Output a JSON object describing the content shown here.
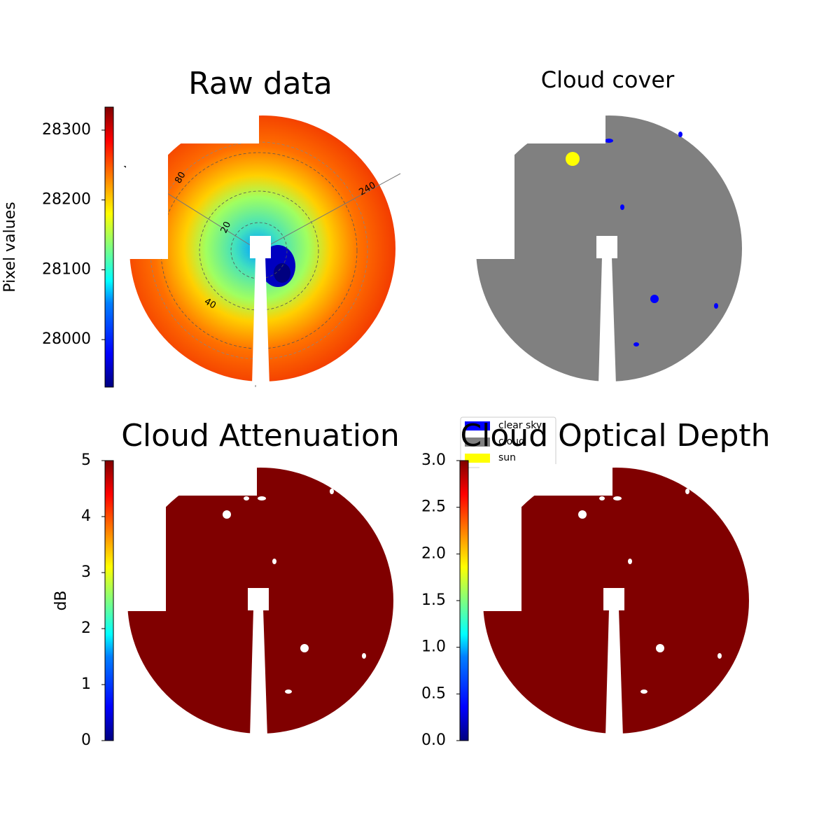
{
  "chart_data": [
    {
      "type": "image",
      "title": "Raw data",
      "colormap": "jet",
      "colorbar": {
        "label": "Pixel values",
        "lim": [
          27932,
          28333
        ],
        "ticks": [
          28000,
          28100,
          28200,
          28300
        ]
      },
      "annotations": [
        "120",
        "80",
        "20",
        "40",
        "240"
      ]
    },
    {
      "type": "image",
      "title": "Cloud cover",
      "legend": {
        "entries": [
          {
            "name": "clear sky",
            "color": "#0000ff"
          },
          {
            "name": "cloud",
            "color": "#808080"
          },
          {
            "name": "sun",
            "color": "#ffff00"
          }
        ]
      }
    },
    {
      "type": "image",
      "title": "Cloud Attenuation",
      "colormap": "jet",
      "colorbar": {
        "label": "dB",
        "lim": [
          0,
          5
        ],
        "ticks": [
          0,
          1,
          2,
          3,
          4,
          5
        ]
      }
    },
    {
      "type": "image",
      "title": "Cloud Optical Depth",
      "colormap": "jet",
      "colorbar": {
        "lim": [
          0,
          3
        ],
        "ticks": [
          {
            "value": 0,
            "label": "0.0"
          },
          {
            "value": 0.5,
            "label": "0.5"
          },
          {
            "value": 1,
            "label": "1.0"
          },
          {
            "value": 1.5,
            "label": "1.5"
          },
          {
            "value": 2,
            "label": "2.0"
          },
          {
            "value": 2.5,
            "label": "2.5"
          },
          {
            "value": 3,
            "label": "3.0"
          }
        ]
      }
    }
  ]
}
